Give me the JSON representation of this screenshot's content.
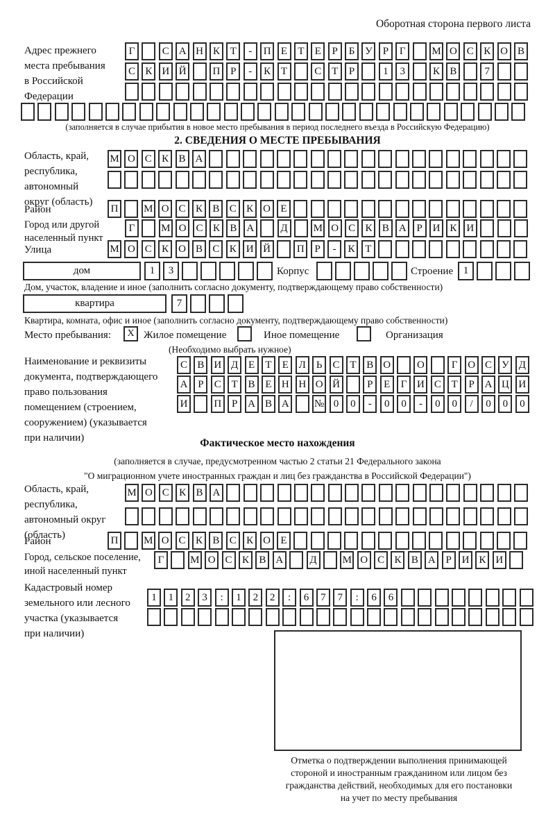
{
  "page": {
    "side_note": "Оборотная сторона первого листа"
  },
  "prev_address": {
    "label_lines": [
      "Адрес прежнего",
      "места пребывания",
      "в Российской",
      "Федерации"
    ],
    "row1": {
      "chars": "Г САНКТ-ПЕТЕРБУРГ МОСКОВ",
      "count": 24
    },
    "row2": {
      "chars": "СКИЙ ПР-КТ СТР 13 КВ 7",
      "count": 24
    },
    "row3": {
      "chars": "",
      "count": 24
    },
    "row4": {
      "chars": "",
      "count": 30
    },
    "note": "(заполняется в случае прибытия в новое место пребывания в период последнего въезда в Российскую Федерацию)"
  },
  "section2": {
    "title": "2. СВЕДЕНИЯ О МЕСТЕ ПРЕБЫВАНИЯ",
    "oblast": {
      "label_lines": [
        "Область, край,",
        "республика,",
        "автономный",
        "округ (область)"
      ],
      "row1": {
        "chars": "МОСКВА",
        "count": 25
      },
      "row2": {
        "chars": "",
        "count": 25
      }
    },
    "raion": {
      "label": "Район",
      "row": {
        "chars": "П МОСКВСКОЕ",
        "count": 25
      }
    },
    "gorod": {
      "label_lines": [
        "Город или другой",
        "населенный пункт"
      ],
      "row": {
        "chars": "Г МОСКВА Д МОСКВАРИКИ",
        "count": 24
      }
    },
    "ulitsa": {
      "label": "Улица",
      "row": {
        "chars": "МОСКОВСКИЙ ПР-КТ",
        "count": 25
      }
    },
    "dom": {
      "box_label": "дом",
      "cells": {
        "chars": "13",
        "count": 7
      },
      "korpus_label": "Корпус",
      "korpus_cells": {
        "chars": "",
        "count": 5
      },
      "stroenie_label": "Строение",
      "stroenie_cells": {
        "chars": "1",
        "count": 4
      },
      "note": "Дом, участок, владение и иное (заполнить согласно документу, подтверждающему право собственности)"
    },
    "kvartira": {
      "box_label": "квартира",
      "cells": {
        "chars": "7",
        "count": 4
      },
      "note": "Квартира, комната, офис и иное (заполнить согласно документу, подтверждающему право собственности)"
    },
    "mesto": {
      "label": "Место пребывания:",
      "options": [
        {
          "label": "Жилое помещение",
          "checked": true,
          "mark": "X"
        },
        {
          "label": "Иное помещение",
          "checked": false,
          "mark": ""
        },
        {
          "label": "Организация",
          "checked": false,
          "mark": ""
        }
      ],
      "note": "(Необходимо выбрать нужное)"
    },
    "doc": {
      "label_lines": [
        "Наименование и реквизиты",
        "документа, подтверждающего",
        "право пользования",
        "помещением (строением,",
        "сооружением) (указывается",
        "при наличии)"
      ],
      "row1": {
        "chars": "СВИДЕТЕЛЬСТВО О ГОСУД",
        "count": 21
      },
      "row2": {
        "chars": "АРСТВЕННОЙ РЕГИСТРАЦИ",
        "count": 21
      },
      "row3": {
        "chars": "И ПРАВА №00-00-00/000",
        "count": 21
      }
    }
  },
  "fact": {
    "title": "Фактическое место нахождения",
    "note_lines": [
      "(заполняется в случае, предусмотренном частью 2 статьи 21 Федерального закона",
      "\"О миграционном учете иностранных граждан и лиц без гражданства в Российской Федерации\")"
    ],
    "oblast": {
      "label_lines": [
        "Область, край,",
        "республика,",
        "автономный округ",
        "(область)"
      ],
      "row1": {
        "chars": "МОСКВА",
        "count": 24
      },
      "row2": {
        "chars": "",
        "count": 24
      }
    },
    "raion": {
      "label": "Район",
      "row": {
        "chars": "П МОСКВСКОЕ",
        "count": 25
      }
    },
    "gorod": {
      "label_lines": [
        "Город, сельское поселение,",
        "иной населенный пункт"
      ],
      "row": {
        "chars": "Г МОСКВА Д МОСКВАРИКИ",
        "count": 22
      }
    },
    "kadastr": {
      "label_lines": [
        "Кадастровый номер",
        "земельного или лесного",
        "участка (указывается",
        "при наличии)"
      ],
      "row1": {
        "chars": "1123:122:677:66",
        "count": 23
      },
      "row2": {
        "chars": "",
        "count": 23
      }
    },
    "stamp_note_lines": [
      "Отметка о подтверждении выполнения принимающей",
      "стороной и иностранным гражданином или лицом без",
      "гражданства действий, необходимых для его постановки",
      "на учет по месту пребывания"
    ]
  }
}
